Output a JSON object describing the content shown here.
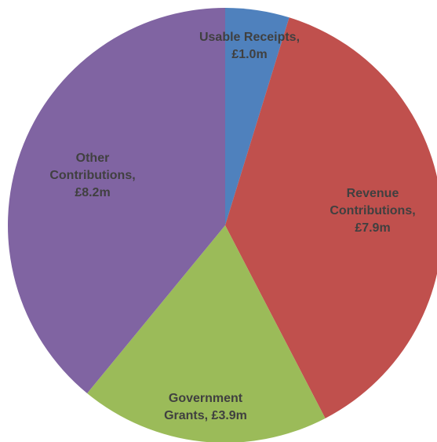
{
  "chart_data": {
    "type": "pie",
    "title": "",
    "start_angle_deg": 0,
    "direction": "clockwise",
    "legend": "none",
    "slices": [
      {
        "name": "Usable Receipts",
        "value": 1.0,
        "value_label": "£1.0m",
        "label_lines": [
          "Usable Receipts,",
          "£1.0m"
        ],
        "color": "#4f81bd"
      },
      {
        "name": "Revenue Contributions",
        "value": 7.9,
        "value_label": "£7.9m",
        "label_lines": [
          "Revenue",
          "Contributions,",
          "£7.9m"
        ],
        "color": "#c0504d"
      },
      {
        "name": "Government Grants",
        "value": 3.9,
        "value_label": "£3.9m",
        "label_lines": [
          "Government",
          "Grants,  £3.9m"
        ],
        "color": "#9bbb59"
      },
      {
        "name": "Other Contributions",
        "value": 8.2,
        "value_label": "£8.2m",
        "label_lines": [
          "Other",
          "Contributions,",
          "£8.2m"
        ],
        "color": "#8064a2"
      }
    ]
  }
}
